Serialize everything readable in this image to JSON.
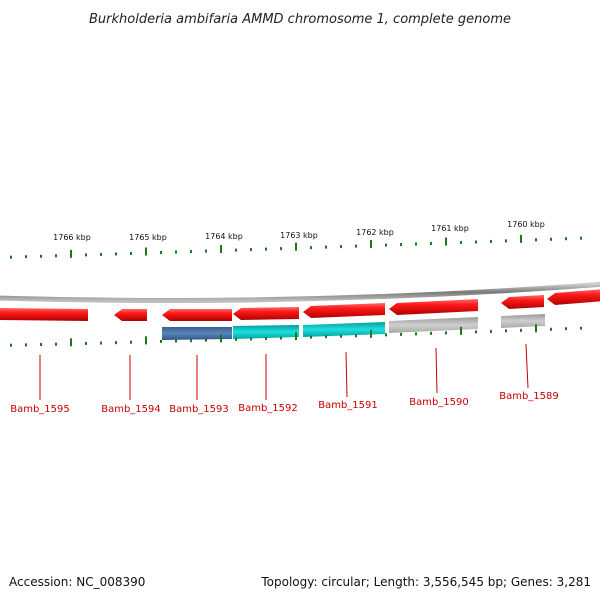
{
  "title": "Burkholderia ambifaria AMMD chromosome 1, complete genome",
  "footer": {
    "accession": "Accession: NC_008390",
    "summary": "Topology: circular; Length: 3,556,545 bp; Genes: 3,281"
  },
  "scale_labels": [
    "1766 kbp",
    "1765 kbp",
    "1764 kbp",
    "1763 kbp",
    "1762 kbp",
    "1761 kbp",
    "1760 kbp"
  ],
  "genes": [
    {
      "id": "Bamb_1595",
      "label": "Bamb_1595"
    },
    {
      "id": "Bamb_1594",
      "label": "Bamb_1594"
    },
    {
      "id": "Bamb_1593",
      "label": "Bamb_1593"
    },
    {
      "id": "Bamb_1592",
      "label": "Bamb_1592"
    },
    {
      "id": "Bamb_1591",
      "label": "Bamb_1591"
    },
    {
      "id": "Bamb_1590",
      "label": "Bamb_1590"
    },
    {
      "id": "Bamb_1589",
      "label": "Bamb_1589"
    }
  ],
  "colors": {
    "gene_red": "#ee1111",
    "gene_red_dark": "#aa0000",
    "backbone": "#888888",
    "tick_green": "#1a7a1a",
    "cog_blue": "#4a74a8",
    "cog_cyan": "#11c4c4",
    "cog_gray": "#b8b8b8",
    "label_red": "#c80000"
  }
}
